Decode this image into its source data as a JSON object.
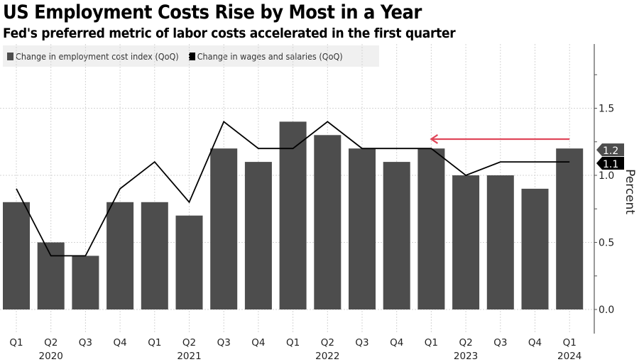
{
  "chart_data": {
    "type": "bar",
    "title": "US Employment Costs Rise by Most in a Year",
    "subtitle": "Fed's preferred metric of labor costs accelerated in the first quarter",
    "xlabel": "",
    "ylabel": "Percent",
    "ylim": [
      0,
      2.0
    ],
    "yticks": [
      0.0,
      0.5,
      1.0,
      1.5
    ],
    "yticks_labels": [
      "0.0",
      "0.5",
      "1.0",
      "1.5"
    ],
    "grid": true,
    "legend_position": "top-left",
    "categories": [
      "Q1 2020",
      "Q2 2020",
      "Q3 2020",
      "Q4 2020",
      "Q1 2021",
      "Q2 2021",
      "Q3 2021",
      "Q4 2021",
      "Q1 2022",
      "Q2 2022",
      "Q3 2022",
      "Q4 2022",
      "Q1 2023",
      "Q2 2023",
      "Q3 2023",
      "Q4 2023",
      "Q1 2024"
    ],
    "quarter_labels": [
      "Q1",
      "Q2",
      "Q3",
      "Q4",
      "Q1",
      "Q2",
      "Q3",
      "Q4",
      "Q1",
      "Q2",
      "Q3",
      "Q4",
      "Q1",
      "Q2",
      "Q3",
      "Q4",
      "Q1"
    ],
    "year_labels": [
      {
        "label": "2020",
        "at_index": 1
      },
      {
        "label": "2021",
        "at_index": 5
      },
      {
        "label": "2022",
        "at_index": 9
      },
      {
        "label": "2023",
        "at_index": 13
      },
      {
        "label": "2024",
        "at_index": 16
      }
    ],
    "series": [
      {
        "name": "Change in employment cost index (QoQ)",
        "type": "bar",
        "color": "#4d4d4d",
        "values": [
          0.8,
          0.5,
          0.4,
          0.8,
          0.8,
          0.7,
          1.2,
          1.1,
          1.4,
          1.3,
          1.2,
          1.1,
          1.2,
          1.0,
          1.0,
          0.9,
          1.2
        ],
        "last_value_label": "1.2"
      },
      {
        "name": "Change in wages and salaries (QoQ)",
        "type": "line",
        "color": "#000000",
        "values": [
          0.9,
          0.4,
          0.4,
          0.9,
          1.1,
          0.8,
          1.4,
          1.2,
          1.2,
          1.4,
          1.2,
          1.2,
          1.2,
          1.0,
          1.1,
          1.1,
          1.1
        ],
        "last_value_label": "1.1"
      }
    ],
    "annotations": [
      {
        "type": "arrow",
        "color": "#e0475a",
        "y": 1.27,
        "from_index": 16,
        "to_index": 12,
        "direction": "left"
      }
    ]
  }
}
